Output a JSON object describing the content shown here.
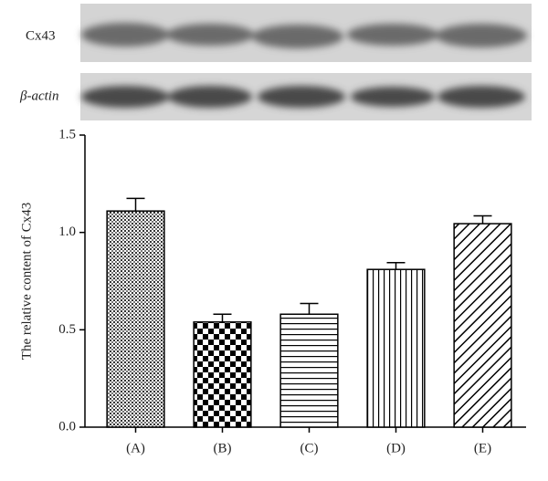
{
  "blot": {
    "labels": [
      "Cx43",
      "β-actin"
    ]
  },
  "chart_data": {
    "type": "bar",
    "y_label": "The relative content of Cx43",
    "categories": [
      "(A)",
      "(B)",
      "(C)",
      "(D)",
      "(E)"
    ],
    "values": [
      1.11,
      0.54,
      0.58,
      0.81,
      1.045
    ],
    "errors": [
      0.065,
      0.04,
      0.055,
      0.035,
      0.04
    ],
    "color": "#000000",
    "ylim": [
      0,
      1.5
    ],
    "yticks": [
      {
        "value": 0,
        "label": "0.0"
      },
      0.5,
      {
        "value": 1,
        "label": "1.0"
      },
      1.5
    ],
    "grid": false
  }
}
